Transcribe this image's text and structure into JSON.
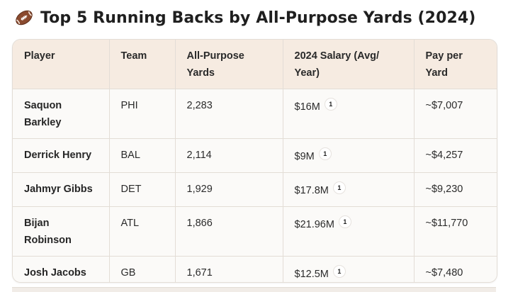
{
  "title": {
    "icon": "football-icon",
    "text": "Top 5 Running Backs by All-Purpose Yards (2024)"
  },
  "table": {
    "headers": [
      "Player",
      "Team",
      "All-Purpose Yards",
      "2024 Salary (Avg/ Year)",
      "Pay per Yard"
    ],
    "rows": [
      {
        "player": "Saquon Barkley",
        "team": "PHI",
        "yards": "2,283",
        "salary": "$16M",
        "citation": "1",
        "pay_per_yard": "~$7,007"
      },
      {
        "player": "Derrick Henry",
        "team": "BAL",
        "yards": "2,114",
        "salary": "$9M",
        "citation": "1",
        "pay_per_yard": "~$4,257"
      },
      {
        "player": "Jahmyr Gibbs",
        "team": "DET",
        "yards": "1,929",
        "salary": "$17.8M",
        "citation": "1",
        "pay_per_yard": "~$9,230"
      },
      {
        "player": "Bijan Robinson",
        "team": "ATL",
        "yards": "1,866",
        "salary": "$21.96M",
        "citation": "1",
        "pay_per_yard": "~$11,770"
      },
      {
        "player": "Josh Jacobs",
        "team": "GB",
        "yards": "1,671",
        "salary": "$12.5M",
        "citation": "1",
        "pay_per_yard": "~$7,480"
      }
    ]
  },
  "colors": {
    "header_bg": "#f6ebe1",
    "row_bg": "#fbfaf8",
    "border": "#e3ddd6",
    "football_brown": "#8a4a2f"
  }
}
